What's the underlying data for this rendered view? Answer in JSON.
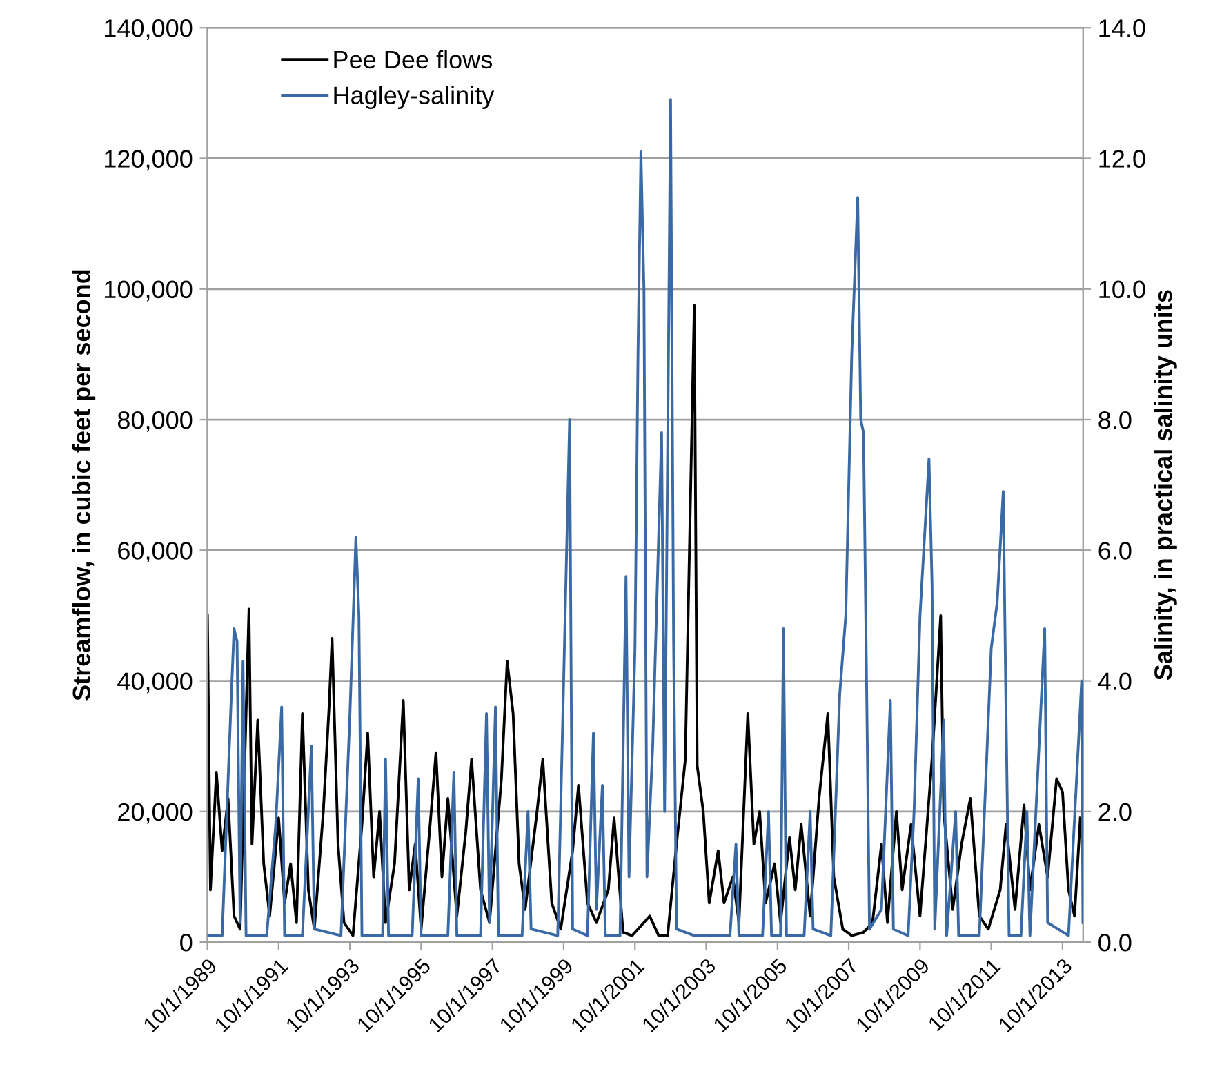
{
  "chart_data": {
    "type": "line",
    "ylabel": "Streamflow, in cubic feet per second",
    "y2label": "Salinity, in practical salinity units",
    "xlim": [
      "1989-10-01",
      "2014-05-01"
    ],
    "xticks": [
      {
        "value": "1989-10-01",
        "label": "10/1/1989"
      },
      {
        "value": "1991-10-01",
        "label": "10/1/1991"
      },
      {
        "value": "1993-10-01",
        "label": "10/1/1993"
      },
      {
        "value": "1995-10-01",
        "label": "10/1/1995"
      },
      {
        "value": "1997-10-01",
        "label": "10/1/1997"
      },
      {
        "value": "1999-10-01",
        "label": "10/1/1999"
      },
      {
        "value": "2001-10-01",
        "label": "10/1/2001"
      },
      {
        "value": "2003-10-01",
        "label": "10/1/2003"
      },
      {
        "value": "2005-10-01",
        "label": "10/1/2005"
      },
      {
        "value": "2007-10-01",
        "label": "10/1/2007"
      },
      {
        "value": "2009-10-01",
        "label": "10/1/2009"
      },
      {
        "value": "2011-10-01",
        "label": "10/1/2011"
      },
      {
        "value": "2013-10-01",
        "label": "10/1/2013"
      }
    ],
    "ylim": [
      0,
      140000
    ],
    "yticks": [
      0,
      {
        "value": 20000,
        "label": "20,000"
      },
      {
        "value": 40000,
        "label": "40,000"
      },
      {
        "value": 60000,
        "label": "60,000"
      },
      {
        "value": 80000,
        "label": "80,000"
      },
      {
        "value": 100000,
        "label": "100,000"
      },
      {
        "value": 120000,
        "label": "120,000"
      },
      {
        "value": 140000,
        "label": "140,000"
      }
    ],
    "y2lim": [
      0,
      14
    ],
    "y2ticks": [
      {
        "value": 0,
        "label": "0.0"
      },
      {
        "value": 2,
        "label": "2.0"
      },
      {
        "value": 4,
        "label": "4.0"
      },
      {
        "value": 6,
        "label": "6.0"
      },
      {
        "value": 8,
        "label": "8.0"
      },
      {
        "value": 10,
        "label": "10.0"
      },
      {
        "value": 12,
        "label": "12.0"
      },
      {
        "value": 14,
        "label": "14.0"
      }
    ],
    "grid": "y",
    "legend": "top left",
    "marker": "none",
    "line_style": "solid",
    "series": [
      {
        "name": "Pee Dee flows",
        "color": "#000000",
        "x": [
          "1989-10",
          "1989-11",
          "1990-01",
          "1990-03",
          "1990-05",
          "1990-07",
          "1990-09",
          "1990-12",
          "1991-01",
          "1991-03",
          "1991-05",
          "1991-07",
          "1991-10",
          "1991-12",
          "1992-02",
          "1992-04",
          "1992-06",
          "1992-08",
          "1992-10",
          "1993-01",
          "1993-03",
          "1993-04",
          "1993-06",
          "1993-08",
          "1993-11",
          "1994-02",
          "1994-04",
          "1994-06",
          "1994-08",
          "1994-10",
          "1995-01",
          "1995-04",
          "1995-06",
          "1995-08",
          "1995-10",
          "1996-01",
          "1996-03",
          "1996-05",
          "1996-07",
          "1996-10",
          "1997-01",
          "1997-03",
          "1997-06",
          "1997-09",
          "1998-01",
          "1998-03",
          "1998-05",
          "1998-07",
          "1998-09",
          "1999-01",
          "1999-03",
          "1999-06",
          "1999-09",
          "2000-01",
          "2000-03",
          "2000-06",
          "2000-09",
          "2001-01",
          "2001-03",
          "2001-06",
          "2001-09",
          "2002-01",
          "2002-03",
          "2002-06",
          "2002-09",
          "2002-12",
          "2003-03",
          "2003-06",
          "2003-07",
          "2003-09",
          "2003-11",
          "2004-02",
          "2004-04",
          "2004-07",
          "2004-09",
          "2004-12",
          "2005-02",
          "2005-04",
          "2005-06",
          "2005-09",
          "2005-11",
          "2006-02",
          "2006-04",
          "2006-06",
          "2006-09",
          "2006-12",
          "2007-03",
          "2007-05",
          "2007-08",
          "2007-11",
          "2008-03",
          "2008-06",
          "2008-09",
          "2008-11",
          "2009-02",
          "2009-04",
          "2009-07",
          "2009-10",
          "2010-02",
          "2010-05",
          "2010-06",
          "2010-09",
          "2010-12",
          "2011-03",
          "2011-06",
          "2011-09",
          "2012-01",
          "2012-03",
          "2012-06",
          "2012-09",
          "2012-11",
          "2013-02",
          "2013-05",
          "2013-08",
          "2013-10",
          "2013-12",
          "2014-02",
          "2014-04"
        ],
        "values": [
          50000,
          8000,
          26000,
          14000,
          22000,
          4000,
          2000,
          51000,
          15000,
          34000,
          12000,
          4000,
          19000,
          6000,
          12000,
          3000,
          35000,
          8000,
          2000,
          20000,
          36000,
          46500,
          15000,
          3000,
          1000,
          18000,
          32000,
          10000,
          20000,
          3000,
          12000,
          37000,
          8000,
          15000,
          2000,
          18000,
          29000,
          10000,
          22000,
          4000,
          17000,
          28000,
          8000,
          3000,
          25000,
          43000,
          35000,
          12000,
          5000,
          20000,
          28000,
          6000,
          2000,
          14000,
          24000,
          6000,
          3000,
          8000,
          19000,
          1500,
          1000,
          3000,
          4000,
          1000,
          1000,
          15000,
          28000,
          97500,
          27000,
          20000,
          6000,
          14000,
          6000,
          10000,
          3000,
          35000,
          15000,
          20000,
          6000,
          12000,
          3000,
          16000,
          8000,
          18000,
          4000,
          22000,
          35000,
          10000,
          2000,
          1000,
          1500,
          3000,
          15000,
          3000,
          20000,
          8000,
          18000,
          4000,
          28000,
          50000,
          20000,
          5000,
          15000,
          22000,
          4000,
          2000,
          8000,
          18000,
          5000,
          21000,
          8000,
          18000,
          10000,
          25000,
          23000,
          8000,
          4000,
          19000
        ]
      },
      {
        "name": "Hagley-salinity",
        "color": "#3a6aa5",
        "axis": "y2",
        "x": [
          "1989-10",
          "1990-03",
          "1990-06",
          "1990-07",
          "1990-08",
          "1990-09",
          "1990-10",
          "1990-11",
          "1991-06",
          "1991-09",
          "1991-11",
          "1991-12",
          "1992-06",
          "1992-09",
          "1992-10",
          "1993-07",
          "1993-10",
          "1993-12",
          "1994-01",
          "1994-02",
          "1994-09",
          "1994-10",
          "1994-11",
          "1995-07",
          "1995-09",
          "1995-10",
          "1996-07",
          "1996-09",
          "1996-10",
          "1997-06",
          "1997-08",
          "1997-09",
          "1997-11",
          "1997-12",
          "1998-08",
          "1998-10",
          "1998-11",
          "1999-08",
          "1999-10",
          "1999-12",
          "2000-01",
          "2000-06",
          "2000-08",
          "2000-09",
          "2000-11",
          "2000-12",
          "2001-05",
          "2001-07",
          "2001-08",
          "2001-10",
          "2001-11",
          "2001-12",
          "2002-01",
          "2002-02",
          "2002-04",
          "2002-07",
          "2002-08",
          "2002-10",
          "2002-11",
          "2002-12",
          "2003-06",
          "2004-06",
          "2004-08",
          "2004-09",
          "2005-05",
          "2005-07",
          "2005-08",
          "2005-11",
          "2005-12",
          "2006-01",
          "2006-07",
          "2006-09",
          "2006-10",
          "2007-04",
          "2007-07",
          "2007-09",
          "2007-11",
          "2008-01",
          "2008-02",
          "2008-03",
          "2008-04",
          "2008-05",
          "2008-09",
          "2008-12",
          "2009-01",
          "2009-06",
          "2009-08",
          "2009-10",
          "2010-01",
          "2010-02",
          "2010-03",
          "2010-06",
          "2010-07",
          "2010-10",
          "2010-11",
          "2011-06",
          "2011-10",
          "2011-12",
          "2012-02",
          "2012-03",
          "2012-04",
          "2012-08",
          "2012-10",
          "2012-11",
          "2013-04",
          "2013-05",
          "2013-12",
          "2014-04-15",
          "2014-04-28"
        ],
        "values": [
          0.1,
          0.1,
          3.7,
          4.8,
          4.6,
          0.3,
          4.3,
          0.1,
          0.1,
          1.8,
          3.6,
          0.1,
          0.1,
          3.0,
          0.2,
          0.1,
          3.5,
          6.2,
          5.0,
          0.1,
          0.1,
          2.8,
          0.1,
          0.1,
          2.5,
          0.1,
          0.1,
          2.6,
          0.1,
          0.1,
          3.5,
          0.3,
          3.6,
          0.1,
          0.1,
          2.0,
          0.2,
          0.1,
          4.0,
          8.0,
          0.2,
          0.1,
          3.2,
          0.5,
          2.4,
          0.1,
          0.1,
          5.6,
          1.0,
          4.5,
          9.0,
          12.1,
          10.0,
          1.0,
          3.0,
          7.8,
          2.0,
          12.9,
          4.6,
          0.2,
          0.1,
          0.1,
          1.5,
          0.1,
          0.1,
          2.0,
          0.1,
          0.1,
          4.8,
          0.1,
          0.1,
          2.0,
          0.2,
          0.1,
          3.8,
          5.0,
          9.0,
          11.4,
          8.0,
          7.8,
          4.0,
          0.2,
          0.5,
          3.7,
          0.2,
          0.1,
          2.0,
          5.0,
          7.4,
          5.5,
          0.2,
          3.4,
          0.1,
          2.0,
          0.1,
          0.1,
          4.5,
          5.2,
          6.9,
          3.5,
          0.1,
          0.1,
          2.0,
          0.1,
          4.8,
          0.3,
          0.1,
          4.0,
          0.3
        ]
      }
    ]
  }
}
